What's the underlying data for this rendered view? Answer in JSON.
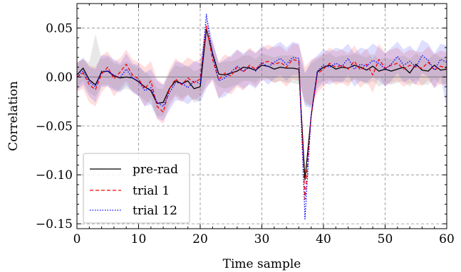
{
  "chart_data": {
    "type": "line",
    "title": "",
    "xlabel": "Time sample",
    "ylabel": "Correlation",
    "xlim": [
      0,
      60
    ],
    "ylim": [
      -0.155,
      0.075
    ],
    "xticks": [
      0,
      10,
      20,
      30,
      40,
      50,
      60
    ],
    "xtick_labels": [
      "0",
      "10",
      "20",
      "30",
      "40",
      "50",
      "60"
    ],
    "yticks": [
      -0.15,
      -0.1,
      -0.05,
      0.0,
      0.05
    ],
    "ytick_labels": [
      "−0.15",
      "−0.10",
      "−0.05",
      "0.00",
      "0.05"
    ],
    "grid": true,
    "legend_position": "lower-left",
    "x": [
      0,
      1,
      2,
      3,
      4,
      5,
      6,
      7,
      8,
      9,
      10,
      11,
      12,
      13,
      14,
      15,
      16,
      17,
      18,
      19,
      20,
      21,
      22,
      23,
      24,
      25,
      26,
      27,
      28,
      29,
      30,
      31,
      32,
      33,
      34,
      35,
      36,
      37,
      38,
      39,
      40,
      41,
      42,
      43,
      44,
      45,
      46,
      47,
      48,
      49,
      50,
      51,
      52,
      53,
      54,
      55,
      56,
      57,
      58,
      59,
      60
    ],
    "series": [
      {
        "name": "pre-rad",
        "color": "#000000",
        "dash": "solid",
        "values": [
          0.002,
          0.009,
          -0.003,
          -0.008,
          0.005,
          0.006,
          0.001,
          -0.001,
          0.0,
          -0.001,
          -0.005,
          -0.01,
          -0.014,
          -0.027,
          -0.026,
          -0.012,
          -0.004,
          -0.007,
          -0.004,
          -0.012,
          -0.01,
          0.049,
          0.024,
          0.003,
          0.002,
          0.004,
          0.006,
          0.01,
          0.009,
          0.007,
          0.012,
          0.011,
          0.008,
          0.01,
          0.009,
          0.009,
          0.008,
          -0.105,
          -0.04,
          0.005,
          0.01,
          0.012,
          0.008,
          0.01,
          0.009,
          0.012,
          0.01,
          0.007,
          0.011,
          0.006,
          0.008,
          0.006,
          0.008,
          0.01,
          0.004,
          0.013,
          0.007,
          0.006,
          0.012,
          0.007,
          0.008
        ]
      },
      {
        "name": "trial 1",
        "color": "#ff0000",
        "dash": "dashed",
        "values": [
          0.0,
          0.004,
          -0.008,
          -0.013,
          0.003,
          0.01,
          -0.002,
          0.005,
          0.013,
          0.002,
          -0.002,
          -0.012,
          -0.004,
          -0.03,
          -0.036,
          -0.012,
          -0.002,
          -0.008,
          -0.001,
          -0.006,
          -0.002,
          0.052,
          0.018,
          -0.003,
          0.004,
          0.001,
          0.01,
          0.005,
          0.012,
          0.008,
          0.014,
          0.016,
          0.013,
          0.015,
          0.01,
          0.018,
          0.016,
          -0.125,
          -0.04,
          0.003,
          0.008,
          0.014,
          0.01,
          0.012,
          0.008,
          0.016,
          0.007,
          0.013,
          0.002,
          0.018,
          0.009,
          0.012,
          0.014,
          0.008,
          0.012,
          0.01,
          0.009,
          0.015,
          0.007,
          0.011,
          0.009
        ]
      },
      {
        "name": "trial 12",
        "color": "#0000ff",
        "dash": "dotted",
        "values": [
          0.0,
          0.006,
          -0.005,
          -0.01,
          0.006,
          0.006,
          0.002,
          -0.001,
          0.008,
          -0.001,
          -0.004,
          -0.014,
          -0.011,
          -0.026,
          -0.03,
          -0.016,
          -0.006,
          -0.006,
          -0.011,
          -0.004,
          -0.007,
          0.064,
          0.023,
          -0.004,
          -0.001,
          0.005,
          0.011,
          0.006,
          0.01,
          0.006,
          0.015,
          0.01,
          0.015,
          0.019,
          0.013,
          0.02,
          0.019,
          -0.145,
          -0.038,
          0.006,
          0.012,
          0.01,
          0.014,
          0.011,
          0.019,
          0.008,
          0.013,
          0.011,
          0.017,
          0.014,
          0.008,
          0.013,
          0.021,
          0.012,
          0.016,
          0.01,
          0.022,
          0.017,
          0.007,
          0.018,
          0.015
        ]
      }
    ],
    "bands": [
      {
        "series": "trial 1",
        "color": "#ff0000",
        "opacity": 0.13,
        "upper": [
          0.015,
          0.018,
          0.012,
          0.01,
          0.022,
          0.026,
          0.016,
          0.019,
          0.028,
          0.018,
          0.015,
          0.01,
          0.016,
          -0.002,
          -0.008,
          0.008,
          0.019,
          0.014,
          0.02,
          0.016,
          0.018,
          0.05,
          0.034,
          0.016,
          0.023,
          0.02,
          0.028,
          0.022,
          0.03,
          0.025,
          0.03,
          0.033,
          0.03,
          0.032,
          0.026,
          0.034,
          0.033,
          0.01,
          0.018,
          0.02,
          0.024,
          0.03,
          0.026,
          0.028,
          0.024,
          0.032,
          0.023,
          0.029,
          0.018,
          0.034,
          0.025,
          0.028,
          0.03,
          0.024,
          0.028,
          0.026,
          0.025,
          0.031,
          0.023,
          0.027,
          0.025
        ],
        "lower": [
          -0.015,
          -0.012,
          -0.026,
          -0.03,
          -0.016,
          -0.008,
          -0.02,
          -0.012,
          -0.004,
          -0.015,
          -0.019,
          -0.03,
          -0.022,
          -0.043,
          -0.048,
          -0.03,
          -0.02,
          -0.026,
          -0.018,
          -0.024,
          -0.02,
          -0.01,
          -0.004,
          -0.022,
          -0.015,
          -0.018,
          -0.01,
          -0.014,
          -0.006,
          -0.01,
          -0.004,
          -0.002,
          -0.006,
          -0.004,
          -0.01,
          -0.002,
          -0.004,
          -0.025,
          -0.03,
          -0.016,
          -0.01,
          -0.004,
          -0.008,
          -0.006,
          -0.01,
          -0.002,
          -0.011,
          -0.005,
          -0.016,
          0.0,
          -0.009,
          -0.006,
          -0.004,
          -0.01,
          -0.006,
          -0.008,
          -0.009,
          -0.003,
          -0.011,
          -0.007,
          -0.009
        ]
      },
      {
        "series": "trial 12",
        "color": "#0000ff",
        "opacity": 0.13,
        "upper": [
          0.014,
          0.02,
          0.01,
          0.008,
          0.022,
          0.022,
          0.018,
          0.014,
          0.024,
          0.014,
          0.012,
          0.004,
          0.008,
          -0.004,
          -0.008,
          0.004,
          0.016,
          0.014,
          0.01,
          0.016,
          0.014,
          0.062,
          0.038,
          0.014,
          0.018,
          0.022,
          0.028,
          0.024,
          0.028,
          0.024,
          0.032,
          0.028,
          0.032,
          0.036,
          0.03,
          0.036,
          0.034,
          0.004,
          0.016,
          0.022,
          0.028,
          0.026,
          0.03,
          0.028,
          0.034,
          0.024,
          0.03,
          0.028,
          0.034,
          0.03,
          0.024,
          0.03,
          0.036,
          0.028,
          0.032,
          0.026,
          0.038,
          0.034,
          0.024,
          0.034,
          0.032
        ],
        "lower": [
          -0.014,
          -0.008,
          -0.02,
          -0.026,
          -0.01,
          -0.01,
          -0.014,
          -0.016,
          -0.008,
          -0.016,
          -0.02,
          -0.03,
          -0.028,
          -0.042,
          -0.045,
          -0.034,
          -0.024,
          -0.024,
          -0.028,
          -0.022,
          -0.026,
          -0.012,
          -0.002,
          -0.022,
          -0.02,
          -0.014,
          -0.008,
          -0.012,
          -0.008,
          -0.012,
          -0.002,
          -0.008,
          -0.002,
          0.002,
          -0.004,
          0.002,
          0.002,
          -0.03,
          -0.032,
          -0.012,
          -0.006,
          -0.008,
          -0.004,
          -0.006,
          0.002,
          -0.01,
          -0.004,
          -0.006,
          0.0,
          -0.004,
          -0.01,
          -0.004,
          0.004,
          -0.006,
          -0.002,
          -0.008,
          0.004,
          0.0,
          -0.012,
          0.0,
          -0.032
        ]
      },
      {
        "series": "pre-rad",
        "color": "#808080",
        "opacity": 0.18,
        "upper": [
          0.014,
          0.018,
          0.015,
          0.044,
          0.018,
          0.02,
          0.014,
          0.012,
          0.016,
          0.012,
          0.01,
          0.006,
          0.0,
          -0.012,
          -0.012,
          0.004,
          0.012,
          0.01,
          0.012,
          0.006,
          0.008,
          0.048,
          0.036,
          0.014,
          0.016,
          0.016,
          0.018,
          0.022,
          0.022,
          0.018,
          0.024,
          0.022,
          0.02,
          0.022,
          0.022,
          0.022,
          0.02,
          0.004,
          0.014,
          0.018,
          0.022,
          0.024,
          0.02,
          0.022,
          0.022,
          0.024,
          0.022,
          0.02,
          0.024,
          0.018,
          0.02,
          0.018,
          0.02,
          0.022,
          0.018,
          0.024,
          0.02,
          0.018,
          0.024,
          0.02,
          0.02
        ],
        "lower": [
          -0.01,
          -0.004,
          -0.016,
          -0.02,
          -0.008,
          -0.008,
          -0.012,
          -0.014,
          -0.012,
          -0.014,
          -0.018,
          -0.024,
          -0.028,
          -0.04,
          -0.04,
          -0.026,
          -0.018,
          -0.022,
          -0.018,
          -0.026,
          -0.024,
          -0.004,
          -0.002,
          -0.01,
          -0.012,
          -0.01,
          -0.008,
          -0.004,
          -0.004,
          -0.006,
          0.0,
          -0.002,
          -0.006,
          -0.004,
          -0.006,
          -0.006,
          -0.008,
          -0.028,
          -0.03,
          -0.008,
          -0.004,
          -0.002,
          -0.006,
          -0.004,
          -0.006,
          -0.002,
          -0.004,
          -0.008,
          -0.004,
          -0.01,
          -0.006,
          -0.008,
          -0.006,
          -0.004,
          -0.01,
          -0.002,
          -0.008,
          -0.008,
          -0.002,
          -0.008,
          -0.006
        ]
      }
    ]
  }
}
